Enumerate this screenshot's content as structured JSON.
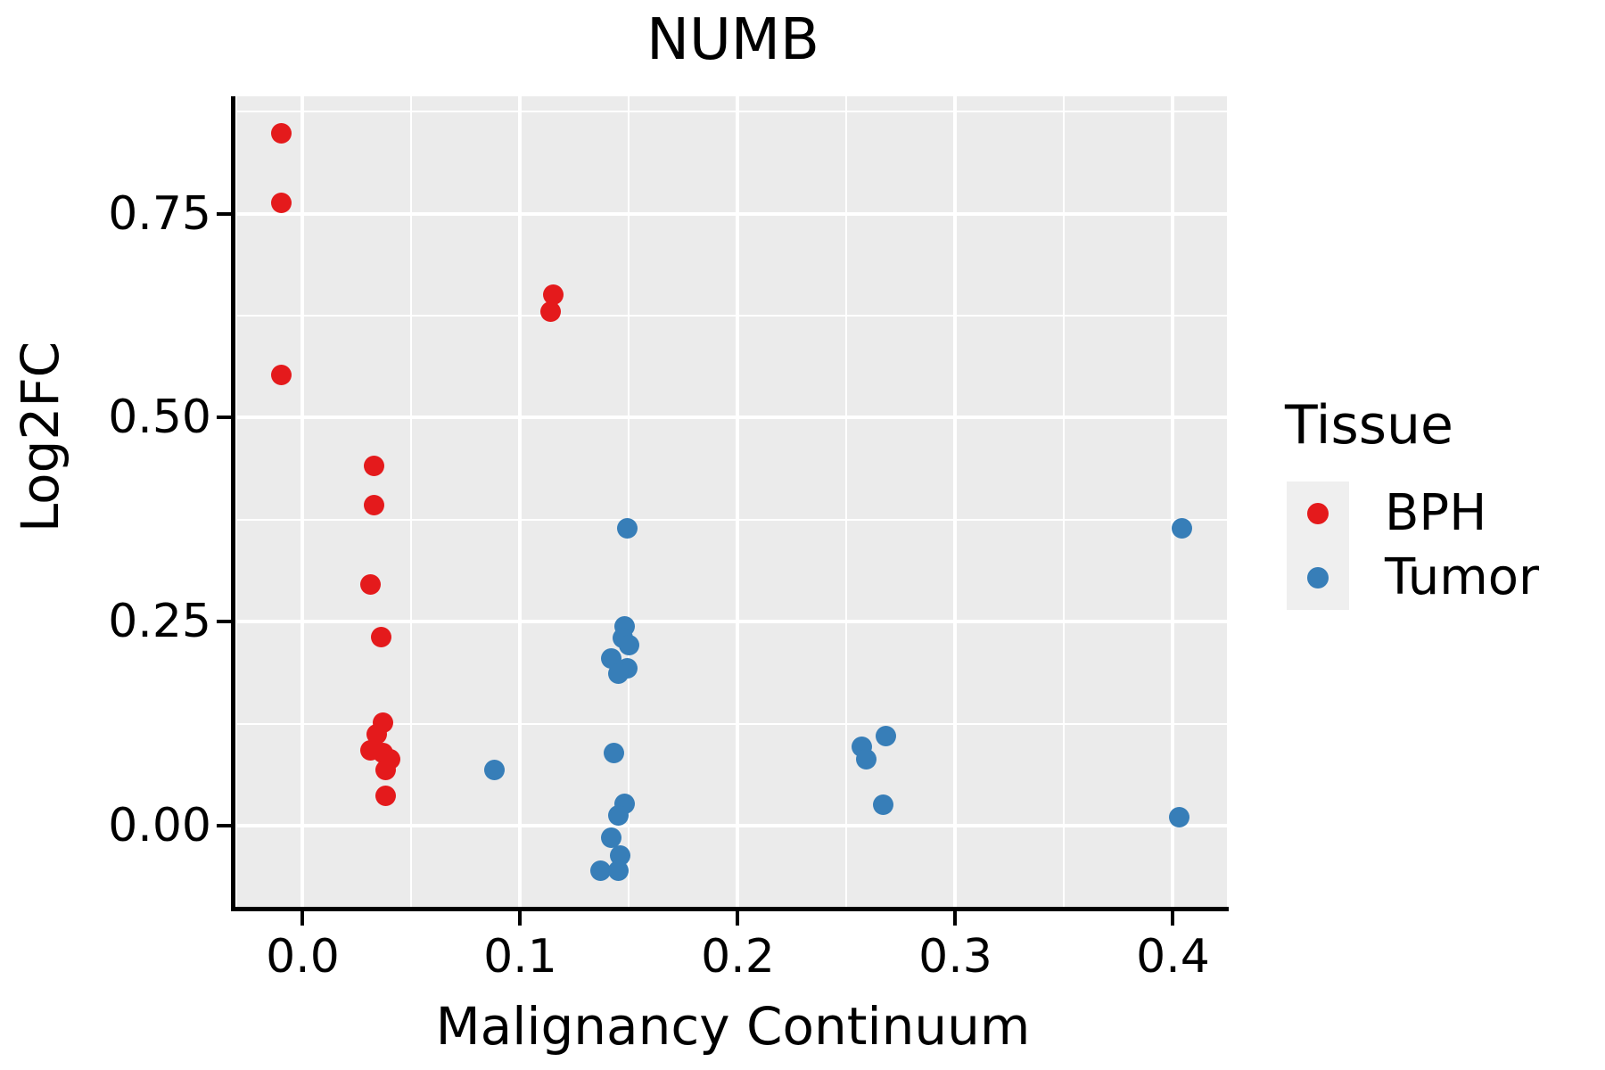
{
  "title": "NUMB",
  "axes": {
    "x": {
      "label": "Malignancy Continuum",
      "tick_labels": [
        "0.0",
        "0.1",
        "0.2",
        "0.3",
        "0.4"
      ],
      "tick_values": [
        0.0,
        0.1,
        0.2,
        0.3,
        0.4
      ],
      "minor_values": [
        0.05,
        0.15,
        0.25,
        0.35
      ],
      "domain": [
        -0.0301,
        0.4248
      ]
    },
    "y": {
      "label": "Log2FC",
      "tick_labels": [
        "0.00",
        "0.25",
        "0.50",
        "0.75"
      ],
      "tick_values": [
        0.0,
        0.25,
        0.5,
        0.75
      ],
      "minor_values": [
        0.125,
        0.375,
        0.625,
        0.875
      ],
      "domain": [
        -0.1017,
        0.894
      ]
    }
  },
  "legend": {
    "title": "Tissue",
    "entries": [
      {
        "label": "BPH",
        "color": "#E41A1C"
      },
      {
        "label": "Tumor",
        "color": "#377EB8"
      }
    ]
  },
  "chart_data": {
    "type": "scatter",
    "title": "NUMB",
    "xlabel": "Malignancy Continuum",
    "ylabel": "Log2FC",
    "xlim": [
      -0.03,
      0.425
    ],
    "ylim": [
      -0.1,
      0.89
    ],
    "grid": "on",
    "legend_position": "right",
    "series": [
      {
        "name": "BPH",
        "color": "#E41A1C",
        "points": [
          [
            -0.01,
            0.849
          ],
          [
            -0.01,
            0.763
          ],
          [
            -0.01,
            0.552
          ],
          [
            0.115,
            0.651
          ],
          [
            0.114,
            0.63
          ],
          [
            0.033,
            0.441
          ],
          [
            0.033,
            0.393
          ],
          [
            0.031,
            0.296
          ],
          [
            0.036,
            0.231
          ],
          [
            0.037,
            0.126
          ],
          [
            0.034,
            0.112
          ],
          [
            0.031,
            0.092
          ],
          [
            0.037,
            0.089
          ],
          [
            0.04,
            0.081
          ],
          [
            0.038,
            0.068
          ],
          [
            0.038,
            0.037
          ]
        ]
      },
      {
        "name": "Tumor",
        "color": "#377EB8",
        "points": [
          [
            0.149,
            0.364
          ],
          [
            0.148,
            0.244
          ],
          [
            0.147,
            0.23
          ],
          [
            0.15,
            0.221
          ],
          [
            0.142,
            0.205
          ],
          [
            0.149,
            0.193
          ],
          [
            0.145,
            0.186
          ],
          [
            0.143,
            0.089
          ],
          [
            0.088,
            0.068
          ],
          [
            0.148,
            0.027
          ],
          [
            0.145,
            0.013
          ],
          [
            0.142,
            -0.015
          ],
          [
            0.146,
            -0.037
          ],
          [
            0.137,
            -0.055
          ],
          [
            0.145,
            -0.055
          ],
          [
            0.268,
            0.11
          ],
          [
            0.257,
            0.097
          ],
          [
            0.259,
            0.081
          ],
          [
            0.267,
            0.026
          ],
          [
            0.404,
            0.364
          ],
          [
            0.403,
            0.01
          ]
        ]
      }
    ]
  },
  "colors": {
    "panel_bg": "#EBEBEB",
    "grid": "#FFFFFF",
    "legend_key_bg": "#EFEFEF",
    "axis": "#000000",
    "text": "#000000"
  }
}
